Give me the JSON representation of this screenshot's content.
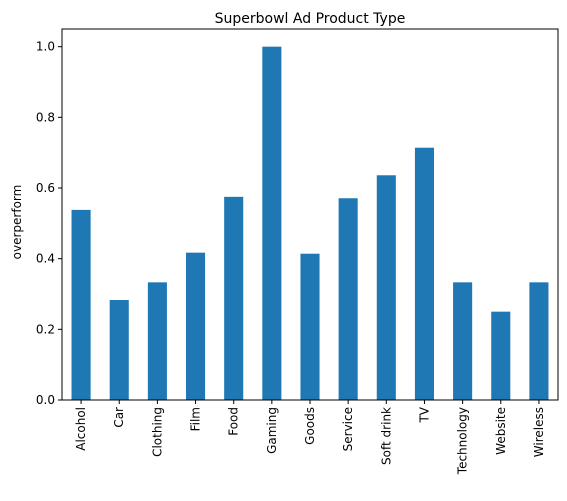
{
  "chart_data": {
    "type": "bar",
    "title": "Superbowl Ad Product Type",
    "xlabel": "",
    "ylabel": "overperform",
    "categories": [
      "Alcohol",
      "Car",
      "Clothing",
      "Film",
      "Food",
      "Gaming",
      "Goods",
      "Service",
      "Soft drink",
      "TV",
      "Technology",
      "Website",
      "Wireless"
    ],
    "values": [
      0.538,
      0.283,
      0.333,
      0.417,
      0.575,
      1.0,
      0.414,
      0.571,
      0.636,
      0.714,
      0.333,
      0.25,
      0.333
    ],
    "ylim": [
      0,
      1.05
    ],
    "yticks": [
      0.0,
      0.2,
      0.4,
      0.6,
      0.8,
      1.0
    ],
    "ytick_labels": [
      "0.0",
      "0.2",
      "0.4",
      "0.6",
      "0.8",
      "1.0"
    ],
    "bar_color": "#1f77b4",
    "grid": false,
    "legend": "none"
  }
}
